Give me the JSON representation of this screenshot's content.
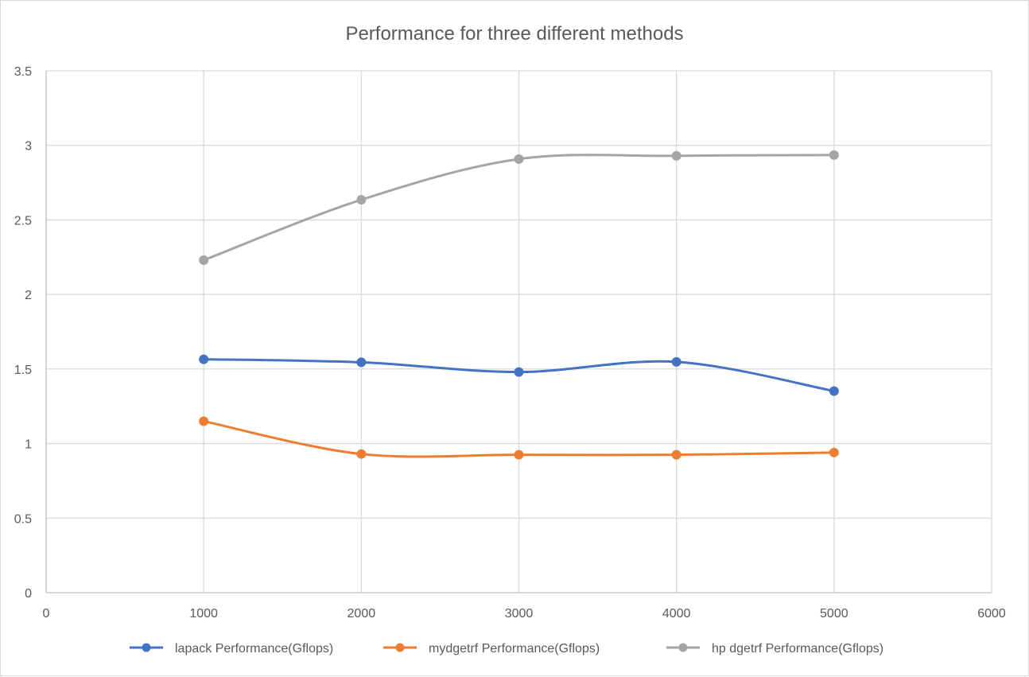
{
  "chart_data": {
    "type": "scatter",
    "title": "Performance for three different methods",
    "xlim": [
      0,
      6000
    ],
    "ylim": [
      0,
      3.5
    ],
    "x_ticks": [
      0,
      1000,
      2000,
      3000,
      4000,
      5000,
      6000
    ],
    "y_ticks": [
      0,
      0.5,
      1,
      1.5,
      2,
      2.5,
      3,
      3.5
    ],
    "x_tick_labels": [
      "0",
      "1000",
      "2000",
      "3000",
      "4000",
      "5000",
      "6000"
    ],
    "y_tick_labels": [
      "0",
      "0.5",
      "1",
      "1.5",
      "2",
      "2.5",
      "3",
      "3.5"
    ],
    "grid": true,
    "smooth_lines": true,
    "legend_position": "bottom",
    "x": [
      1000,
      2000,
      3000,
      4000,
      5000
    ],
    "series": [
      {
        "name": "lapack Performance(Gflops)",
        "color": "#4472C4",
        "values": [
          1.565,
          1.545,
          1.48,
          1.548,
          1.352
        ]
      },
      {
        "name": "mydgetrf Performance(Gflops)",
        "color": "#ED7D31",
        "values": [
          1.15,
          0.93,
          0.925,
          0.925,
          0.94
        ]
      },
      {
        "name": "hp dgetrf Performance(Gflops)",
        "color": "#A5A5A5",
        "values": [
          2.23,
          2.635,
          2.908,
          2.93,
          2.935
        ]
      }
    ]
  }
}
